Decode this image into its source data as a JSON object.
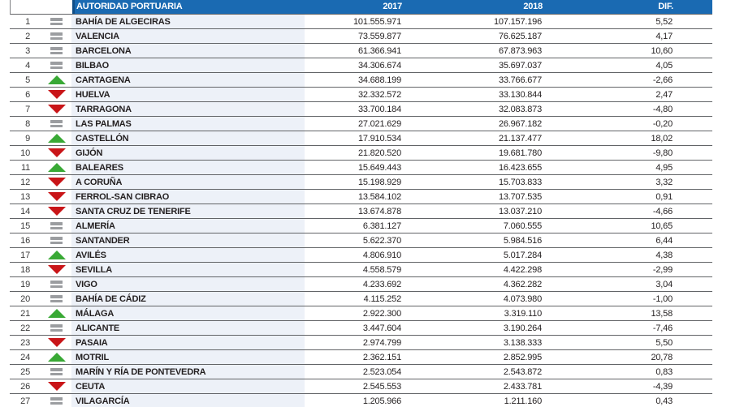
{
  "colors": {
    "header_bg": "#1a6ab2",
    "header_edge": "#0f4d86",
    "name_col_bg": "#edf1f8",
    "row_line": "#626467",
    "trend_up": "#39a935",
    "trend_down": "#c91518",
    "trend_same": "#9b9da0"
  },
  "header": {
    "name_label": "AUTORIDAD PORTUARIA",
    "col_2017": "2017",
    "col_2018": "2018",
    "col_dif": "DIF."
  },
  "chart_data": {
    "type": "table",
    "columns": [
      "rank",
      "trend",
      "AUTORIDAD PORTUARIA",
      "2017",
      "2018",
      "DIF."
    ],
    "rows": [
      {
        "rank": "1",
        "trend": "same",
        "name": "BAHÍA DE ALGECIRAS",
        "y2017": "101.555.971",
        "y2018": "107.157.196",
        "dif": "5,52"
      },
      {
        "rank": "2",
        "trend": "same",
        "name": "VALENCIA",
        "y2017": "73.559.877",
        "y2018": "76.625.187",
        "dif": "4,17"
      },
      {
        "rank": "3",
        "trend": "same",
        "name": "BARCELONA",
        "y2017": "61.366.941",
        "y2018": "67.873.963",
        "dif": "10,60"
      },
      {
        "rank": "4",
        "trend": "same",
        "name": "BILBAO",
        "y2017": "34.306.674",
        "y2018": "35.697.037",
        "dif": "4,05"
      },
      {
        "rank": "5",
        "trend": "up",
        "name": "CARTAGENA",
        "y2017": "34.688.199",
        "y2018": "33.766.677",
        "dif": "-2,66"
      },
      {
        "rank": "6",
        "trend": "down",
        "name": "HUELVA",
        "y2017": "32.332.572",
        "y2018": "33.130.844",
        "dif": "2,47"
      },
      {
        "rank": "7",
        "trend": "down",
        "name": "TARRAGONA",
        "y2017": "33.700.184",
        "y2018": "32.083.873",
        "dif": "-4,80"
      },
      {
        "rank": "8",
        "trend": "same",
        "name": "LAS PALMAS",
        "y2017": "27.021.629",
        "y2018": "26.967.182",
        "dif": "-0,20"
      },
      {
        "rank": "9",
        "trend": "up",
        "name": "CASTELLÓN",
        "y2017": "17.910.534",
        "y2018": "21.137.477",
        "dif": "18,02"
      },
      {
        "rank": "10",
        "trend": "down",
        "name": "GIJÓN",
        "y2017": "21.820.520",
        "y2018": "19.681.780",
        "dif": "-9,80"
      },
      {
        "rank": "11",
        "trend": "up",
        "name": "BALEARES",
        "y2017": "15.649.443",
        "y2018": "16.423.655",
        "dif": "4,95"
      },
      {
        "rank": "12",
        "trend": "down",
        "name": "A CORUÑA",
        "y2017": "15.198.929",
        "y2018": "15.703.833",
        "dif": "3,32"
      },
      {
        "rank": "13",
        "trend": "down",
        "name": "FERROL-SAN CIBRAO",
        "y2017": "13.584.102",
        "y2018": "13.707.535",
        "dif": "0,91"
      },
      {
        "rank": "14",
        "trend": "down",
        "name": "SANTA CRUZ DE TENERIFE",
        "y2017": "13.674.878",
        "y2018": "13.037.210",
        "dif": "-4,66"
      },
      {
        "rank": "15",
        "trend": "same",
        "name": "ALMERÍA",
        "y2017": "6.381.127",
        "y2018": "7.060.555",
        "dif": "10,65"
      },
      {
        "rank": "16",
        "trend": "same",
        "name": "SANTANDER",
        "y2017": "5.622.370",
        "y2018": "5.984.516",
        "dif": "6,44"
      },
      {
        "rank": "17",
        "trend": "up",
        "name": "AVILÉS",
        "y2017": "4.806.910",
        "y2018": "5.017.284",
        "dif": "4,38"
      },
      {
        "rank": "18",
        "trend": "down",
        "name": "SEVILLA",
        "y2017": "4.558.579",
        "y2018": "4.422.298",
        "dif": "-2,99"
      },
      {
        "rank": "19",
        "trend": "same",
        "name": "VIGO",
        "y2017": "4.233.692",
        "y2018": "4.362.282",
        "dif": "3,04"
      },
      {
        "rank": "20",
        "trend": "same",
        "name": "BAHÍA DE CÁDIZ",
        "y2017": "4.115.252",
        "y2018": "4.073.980",
        "dif": "-1,00"
      },
      {
        "rank": "21",
        "trend": "up",
        "name": "MÁLAGA",
        "y2017": "2.922.300",
        "y2018": "3.319.110",
        "dif": "13,58"
      },
      {
        "rank": "22",
        "trend": "same",
        "name": "ALICANTE",
        "y2017": "3.447.604",
        "y2018": "3.190.264",
        "dif": "-7,46"
      },
      {
        "rank": "23",
        "trend": "down",
        "name": "PASAIA",
        "y2017": "2.974.799",
        "y2018": "3.138.333",
        "dif": "5,50"
      },
      {
        "rank": "24",
        "trend": "up",
        "name": "MOTRIL",
        "y2017": "2.362.151",
        "y2018": "2.852.995",
        "dif": "20,78"
      },
      {
        "rank": "25",
        "trend": "same",
        "name": "MARÍN Y RÍA DE PONTEVEDRA",
        "y2017": "2.523.054",
        "y2018": "2.543.872",
        "dif": "0,83"
      },
      {
        "rank": "26",
        "trend": "down",
        "name": "CEUTA",
        "y2017": "2.545.553",
        "y2018": "2.433.781",
        "dif": "-4,39"
      },
      {
        "rank": "27",
        "trend": "same",
        "name": "VILAGARCÍA",
        "y2017": "1.205.966",
        "y2018": "1.211.160",
        "dif": "0,43"
      }
    ]
  }
}
